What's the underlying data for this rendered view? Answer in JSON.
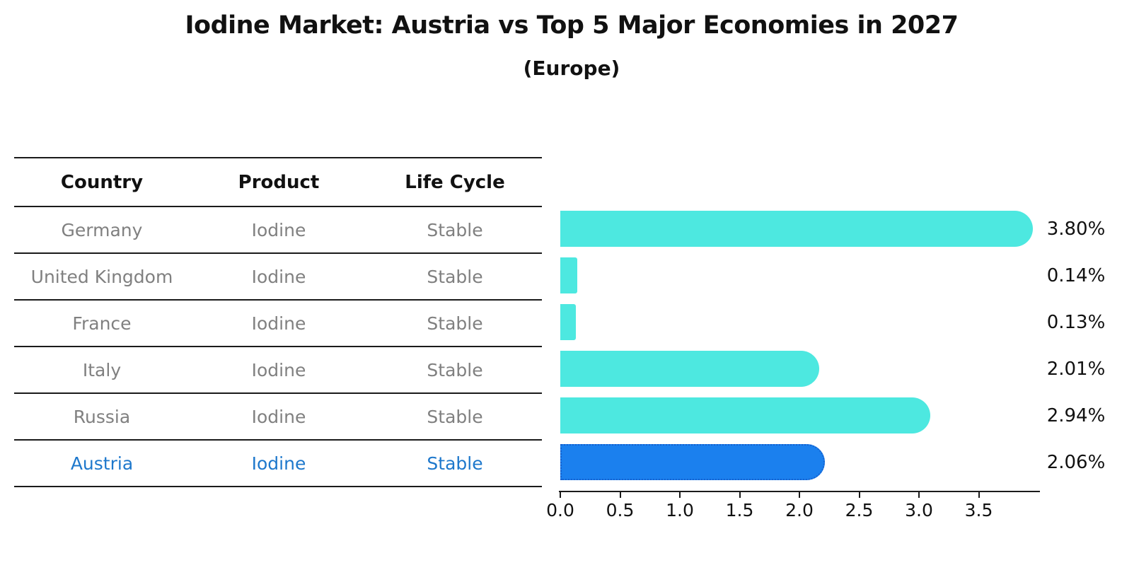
{
  "header": {
    "title": "Iodine Market: Austria vs Top 5 Major Economies in 2027",
    "subtitle": "(Europe)"
  },
  "table": {
    "headers": [
      "Country",
      "Product",
      "Life Cycle"
    ],
    "rows": [
      {
        "country": "Germany",
        "product": "Iodine",
        "life_cycle": "Stable",
        "highlighted": false
      },
      {
        "country": "United Kingdom",
        "product": "Iodine",
        "life_cycle": "Stable",
        "highlighted": false
      },
      {
        "country": "France",
        "product": "Iodine",
        "life_cycle": "Stable",
        "highlighted": false
      },
      {
        "country": "Italy",
        "product": "Iodine",
        "life_cycle": "Stable",
        "highlighted": false
      },
      {
        "country": "Russia",
        "product": "Iodine",
        "life_cycle": "Stable",
        "highlighted": false
      },
      {
        "country": "Austria",
        "product": "Iodine",
        "life_cycle": "Stable",
        "highlighted": true
      }
    ]
  },
  "chart_data": {
    "type": "bar",
    "orientation": "horizontal",
    "title": "Iodine Market: Austria vs Top 5 Major Economies in 2027 (Europe)",
    "categories": [
      "Germany",
      "United Kingdom",
      "France",
      "Italy",
      "Russia",
      "Austria"
    ],
    "values": [
      3.8,
      0.14,
      0.13,
      2.01,
      2.94,
      2.06
    ],
    "value_labels": [
      "3.80%",
      "0.14%",
      "0.13%",
      "2.01%",
      "2.94%",
      "2.06%"
    ],
    "x_tick_labels": [
      "0.0",
      "0.5",
      "1.0",
      "1.5",
      "2.0",
      "2.5",
      "3.0",
      "3.5"
    ],
    "xlim": [
      0,
      4.0
    ],
    "grid": false,
    "legend": "none",
    "highlight_index": 5,
    "colors": {
      "bar": "#4DE8E0",
      "highlight_bar": "#1B80EE",
      "highlight_border": "#1560CE",
      "value_label_text": "#111111",
      "table_text": "#808080",
      "highlight_text": "#1E78CC"
    }
  }
}
